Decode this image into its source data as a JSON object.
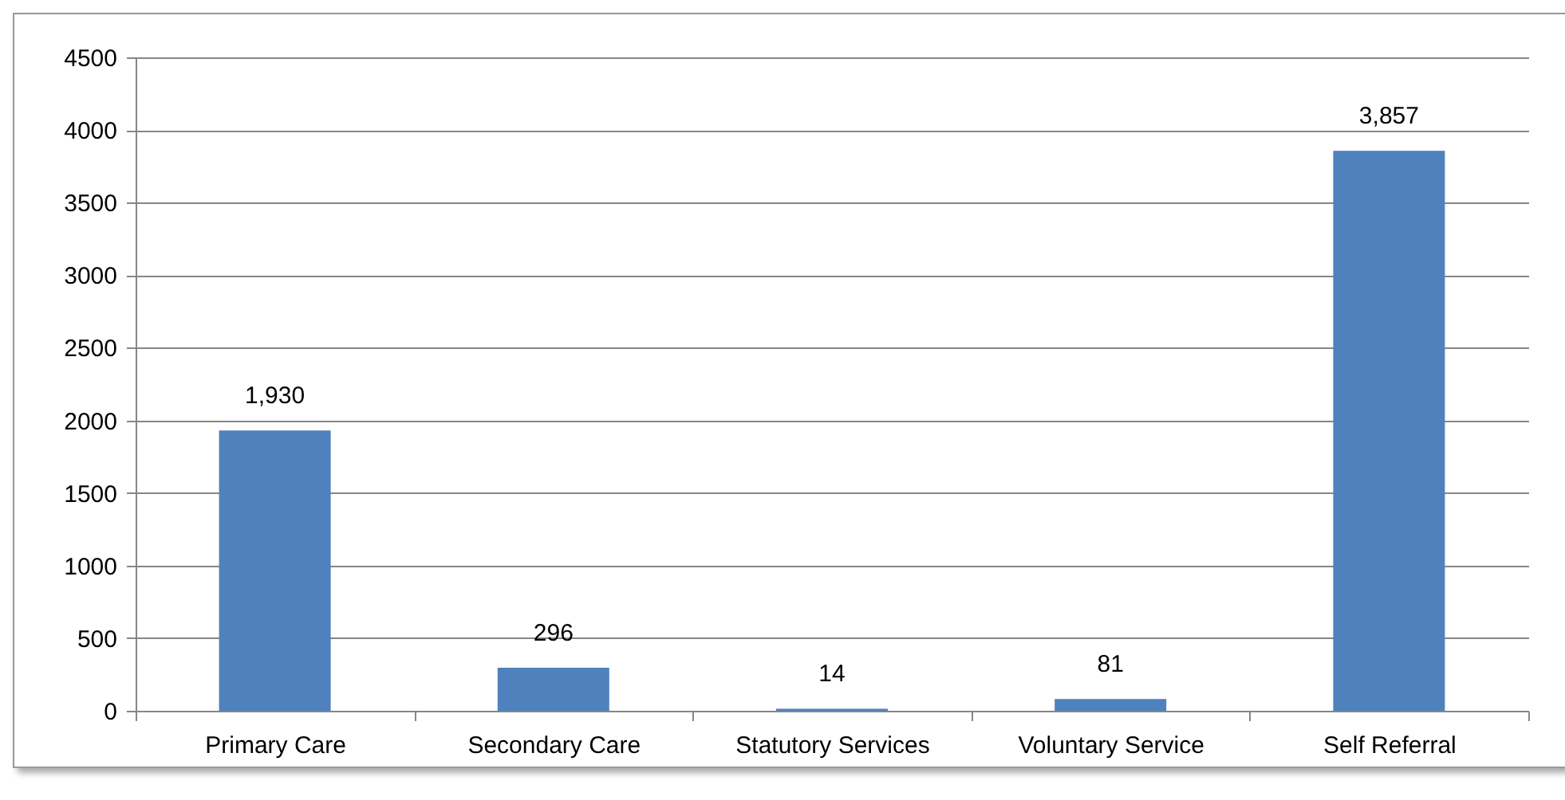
{
  "chart_data": {
    "type": "bar",
    "categories": [
      "Primary Care",
      "Secondary Care",
      "Statutory Services",
      "Voluntary Service",
      "Self Referral"
    ],
    "values": [
      1930,
      296,
      14,
      81,
      3857
    ],
    "value_labels": [
      "1,930",
      "296",
      "14",
      "81",
      "3,857"
    ],
    "color": "#4f81bd",
    "ylim": [
      0,
      4500
    ],
    "yticks": [
      0,
      500,
      1000,
      1500,
      2000,
      2500,
      3000,
      3500,
      4000,
      4500
    ],
    "grid": "y"
  }
}
